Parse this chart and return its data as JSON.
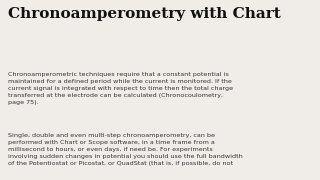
{
  "title": "Chronoamperometry with Chart",
  "bg_color": "#f0ede8",
  "title_color": "#111111",
  "text_color": "#333333",
  "title_fontsize": 11.0,
  "body_fontsize": 4.6,
  "paragraph1": "Chronoamperometric techniques require that a constant potential is\nmaintained for a defined period while the current is monitored. If the\ncurrent signal is integrated with respect to time then the total charge\ntransferred at the electrode can be calculated (Chronocoulometry,\npage 75).",
  "paragraph2": "Single, double and even multi-step chronoamperometry, can be\nperformed with Chart or Scope software, in a time frame from a\nmillisecond to hours, or even days, if need be. For experiments\ninvolving sudden changes in potential you should use the full bandwidth\nof the Potentiostat or Picostat, or QuadStat (that is, if possible, do not"
}
